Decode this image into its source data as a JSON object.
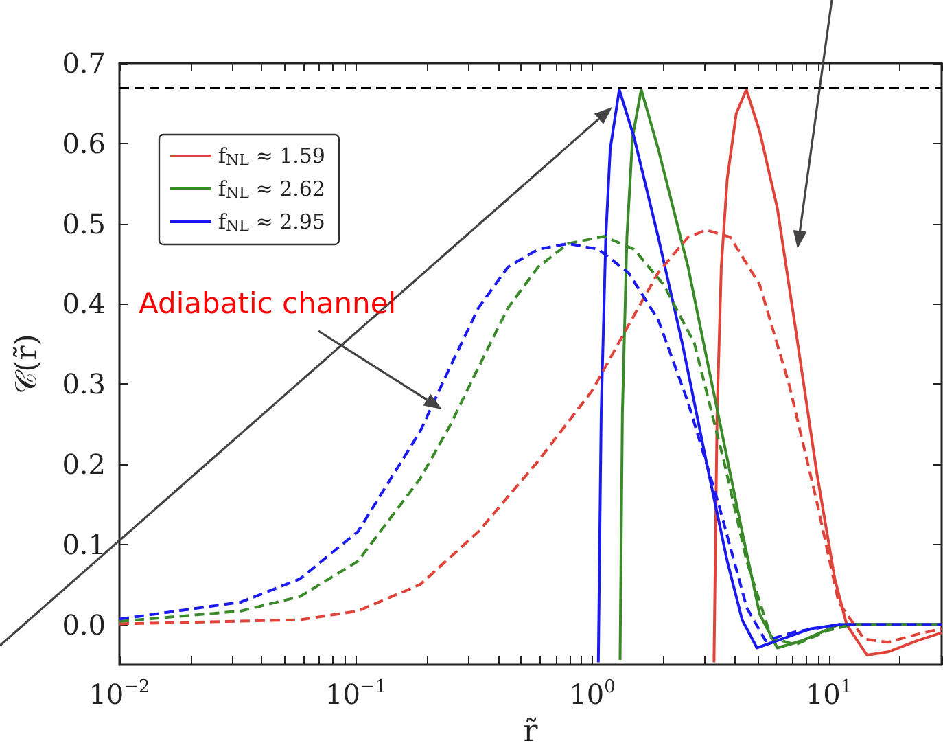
{
  "chart_data": {
    "type": "line",
    "xlabel": "r̃",
    "ylabel": "𝒞(r̃)",
    "log": "x",
    "xlim": [
      0.01,
      30
    ],
    "ylim": [
      -0.05,
      0.7
    ],
    "xticks": [
      {
        "value": 0.01,
        "label": "10$^{−2}$"
      },
      {
        "value": 0.02,
        "label": null
      },
      {
        "value": 0.03,
        "label": null
      },
      {
        "value": 0.04,
        "label": null
      },
      {
        "value": 0.05,
        "label": null
      },
      {
        "value": 0.06,
        "label": null
      },
      {
        "value": 0.07,
        "label": null
      },
      {
        "value": 0.08,
        "label": null
      },
      {
        "value": 0.09,
        "label": null
      },
      {
        "value": 0.1,
        "label": "10$^{−1}$"
      },
      {
        "value": 0.2,
        "label": null
      },
      {
        "value": 0.3,
        "label": null
      },
      {
        "value": 0.4,
        "label": null
      },
      {
        "value": 0.5,
        "label": null
      },
      {
        "value": 0.6,
        "label": null
      },
      {
        "value": 0.7,
        "label": null
      },
      {
        "value": 0.8,
        "label": null
      },
      {
        "value": 0.9,
        "label": null
      },
      {
        "value": 1,
        "label": "10$^{0}$"
      },
      {
        "value": 2,
        "label": null
      },
      {
        "value": 3,
        "label": null
      },
      {
        "value": 4,
        "label": null
      },
      {
        "value": 5,
        "label": null
      },
      {
        "value": 6,
        "label": null
      },
      {
        "value": 7,
        "label": null
      },
      {
        "value": 8,
        "label": null
      },
      {
        "value": 9,
        "label": null
      },
      {
        "value": 10,
        "label": "10$^{1}$"
      },
      {
        "value": 20,
        "label": null
      },
      {
        "value": 30,
        "label": null
      }
    ],
    "yticks": [
      {
        "value": 0,
        "label": "0.0"
      },
      0.1,
      0.2,
      0.3,
      0.4,
      0.5,
      0.6,
      0.7
    ],
    "grid": false,
    "legend": "top left",
    "marker": "none",
    "ref_lines": [
      {
        "axis": "y",
        "value": 0.667,
        "color": "#000000",
        "line_style": "dashed"
      }
    ],
    "annotations": [
      "Adiabatic channel"
    ],
    "series": [
      {
        "name": "f$_{NL}$ ≈ 1.59",
        "color": "#e0433a",
        "line_style": "solid",
        "x": [
          3.27,
          3.37,
          3.51,
          3.72,
          4.06,
          4.48,
          5.1,
          6.06,
          7.2,
          8.9,
          10.6,
          11.9,
          14.5,
          17.8,
          23.7,
          30
        ],
        "values": [
          -0.047,
          0.263,
          0.446,
          0.556,
          0.637,
          0.667,
          0.615,
          0.519,
          0.373,
          0.189,
          0.057,
          0,
          -0.038,
          -0.034,
          -0.02,
          -0.01
        ]
      },
      {
        "name": "f$_{NL}$ ≈ 2.62",
        "color": "#3a8a2a",
        "line_style": "solid",
        "x": [
          1.31,
          1.34,
          1.4,
          1.48,
          1.61,
          1.9,
          2.54,
          3.4,
          4.3,
          5.1,
          6.06,
          7.7,
          11,
          30
        ],
        "values": [
          -0.044,
          0.263,
          0.483,
          0.608,
          0.667,
          0.593,
          0.446,
          0.263,
          0.116,
          0.013,
          -0.029,
          -0.02,
          0,
          0
        ]
      },
      {
        "name": "f$_{NL}$ ≈ 2.95",
        "color": "#1a1aee",
        "line_style": "solid",
        "x": [
          1.06,
          1.09,
          1.14,
          1.19,
          1.3,
          1.5,
          1.9,
          2.4,
          3.03,
          3.72,
          4.3,
          4.97,
          6.06,
          8.4,
          11.1,
          30
        ],
        "values": [
          -0.047,
          0.263,
          0.483,
          0.593,
          0.667,
          0.608,
          0.483,
          0.351,
          0.204,
          0.079,
          0.006,
          -0.029,
          -0.02,
          -0.005,
          0,
          0
        ]
      },
      {
        "color": "#e0433a",
        "line_style": "dashed",
        "x": [
          0.01,
          0.058,
          0.102,
          0.187,
          0.33,
          0.59,
          1,
          1.42,
          1.9,
          2.54,
          3.03,
          3.83,
          5.1,
          6.8,
          8.9,
          11,
          14.1,
          17.8,
          23.7,
          30
        ],
        "values": [
          0.001,
          0.006,
          0.017,
          0.05,
          0.116,
          0.204,
          0.292,
          0.373,
          0.439,
          0.483,
          0.492,
          0.483,
          0.424,
          0.299,
          0.153,
          0.028,
          -0.018,
          -0.022,
          -0.012,
          -0.005
        ]
      },
      {
        "color": "#3a8a2a",
        "line_style": "dashed",
        "x": [
          0.01,
          0.0326,
          0.058,
          0.102,
          0.187,
          0.25,
          0.33,
          0.44,
          0.59,
          0.79,
          1.12,
          1.5,
          2,
          2.7,
          3.6,
          4.5,
          5.7,
          7.2,
          10,
          12.5,
          30
        ],
        "values": [
          0.004,
          0.017,
          0.035,
          0.079,
          0.182,
          0.248,
          0.321,
          0.395,
          0.446,
          0.475,
          0.484,
          0.468,
          0.424,
          0.351,
          0.204,
          0.079,
          -0.016,
          -0.025,
          -0.007,
          0,
          0
        ]
      },
      {
        "color": "#1a1aee",
        "line_style": "dashed",
        "x": [
          0.01,
          0.0326,
          0.058,
          0.102,
          0.187,
          0.25,
          0.33,
          0.44,
          0.59,
          0.79,
          1.06,
          1.42,
          1.9,
          2.54,
          3.4,
          4.5,
          5.4,
          7.2,
          11,
          30
        ],
        "values": [
          0.007,
          0.028,
          0.057,
          0.116,
          0.241,
          0.321,
          0.395,
          0.446,
          0.468,
          0.475,
          0.468,
          0.439,
          0.38,
          0.277,
          0.153,
          0.021,
          -0.02,
          -0.009,
          0,
          0
        ]
      }
    ]
  }
}
